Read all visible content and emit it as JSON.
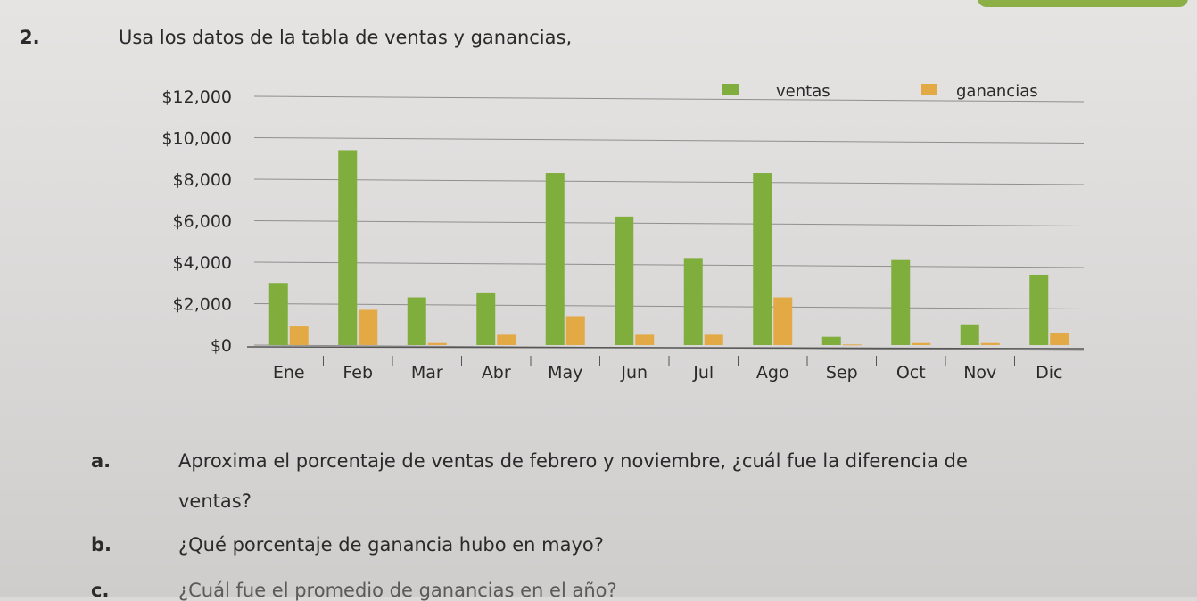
{
  "question": {
    "number": "2.",
    "text": "Usa los datos de la tabla de ventas y ganancias,"
  },
  "chart_data": {
    "type": "bar",
    "categories": [
      "Ene",
      "Feb",
      "Mar",
      "Abr",
      "May",
      "Jun",
      "Jul",
      "Ago",
      "Sep",
      "Oct",
      "Nov",
      "Dic"
    ],
    "series": [
      {
        "name": "ventas",
        "color": "#7fae3d",
        "values": [
          3000,
          9400,
          2300,
          2500,
          8300,
          6200,
          4200,
          8300,
          400,
          4100,
          1000,
          3400
        ]
      },
      {
        "name": "ganancias",
        "color": "#e3a945",
        "values": [
          900,
          1700,
          100,
          500,
          1400,
          500,
          500,
          2300,
          30,
          100,
          100,
          600
        ]
      }
    ],
    "y_ticks": [
      0,
      2000,
      4000,
      6000,
      8000,
      10000,
      12000
    ],
    "y_tick_labels": [
      "$0",
      "$2,000",
      "$4,000",
      "$6,000",
      "$8,000",
      "$10,000",
      "$12,000"
    ],
    "ylim": [
      0,
      12000
    ],
    "grid": true,
    "legend_position": "top-right"
  },
  "subquestions": [
    {
      "label": "a.",
      "text_line1": "Aproxima el porcentaje de ventas de febrero y noviembre, ¿cuál fue la diferencia de",
      "text_line2": "ventas?"
    },
    {
      "label": "b.",
      "text_line1": "¿Qué porcentaje de ganancia hubo en mayo?"
    },
    {
      "label": "c.",
      "text_line1": "¿Cuál fue el promedio de ganancias en el año?"
    }
  ]
}
